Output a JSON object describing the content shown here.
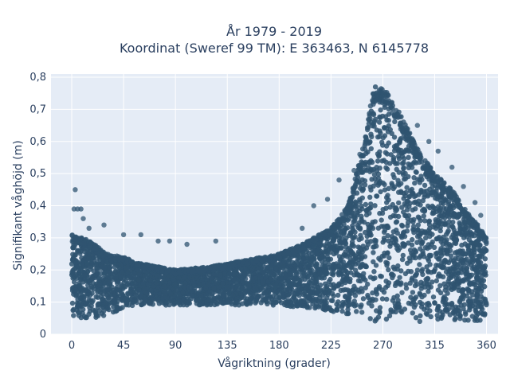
{
  "chart_data": {
    "type": "scatter",
    "title_line1": "År 1979 - 2019",
    "title_line2": "Koordinat (Sweref 99 TM): E 363463, N 6145778",
    "xlabel": "Vågriktning (grader)",
    "ylabel": "Signifikant våghöjd (m)",
    "xlim": [
      -18,
      370
    ],
    "ylim": [
      0,
      0.81
    ],
    "x_ticks": [
      0,
      45,
      90,
      135,
      180,
      225,
      270,
      315,
      360
    ],
    "x_tick_labels": [
      "0",
      "45",
      "90",
      "135",
      "180",
      "225",
      "270",
      "315",
      "360"
    ],
    "y_ticks": [
      0,
      0.1,
      0.2,
      0.3,
      0.4,
      0.5,
      0.6,
      0.7,
      0.8
    ],
    "y_tick_labels": [
      "0",
      "0,1",
      "0,2",
      "0,3",
      "0,4",
      "0,5",
      "0,6",
      "0,7",
      "0,8"
    ],
    "grid": true,
    "marker_color": "#2f5470",
    "plot_bg": "#e5ecf6",
    "density_envelope": {
      "direction": [
        0,
        10,
        20,
        30,
        45,
        60,
        90,
        120,
        135,
        150,
        180,
        200,
        215,
        225,
        240,
        255,
        262,
        270,
        280,
        290,
        300,
        315,
        330,
        345,
        355,
        360
      ],
      "min_height": [
        0.05,
        0.05,
        0.05,
        0.06,
        0.08,
        0.09,
        0.09,
        0.09,
        0.09,
        0.09,
        0.09,
        0.08,
        0.08,
        0.07,
        0.06,
        0.05,
        0.04,
        0.04,
        0.04,
        0.04,
        0.04,
        0.04,
        0.04,
        0.04,
        0.04,
        0.04
      ],
      "max_height": [
        0.31,
        0.3,
        0.28,
        0.25,
        0.24,
        0.22,
        0.2,
        0.21,
        0.22,
        0.23,
        0.25,
        0.28,
        0.31,
        0.33,
        0.4,
        0.62,
        0.77,
        0.77,
        0.72,
        0.65,
        0.58,
        0.5,
        0.45,
        0.37,
        0.33,
        0.3
      ]
    },
    "outliers": [
      [
        3,
        0.45
      ],
      [
        2,
        0.39
      ],
      [
        5,
        0.39
      ],
      [
        8,
        0.39
      ],
      [
        10,
        0.36
      ],
      [
        15,
        0.33
      ],
      [
        28,
        0.34
      ],
      [
        45,
        0.31
      ],
      [
        60,
        0.31
      ],
      [
        75,
        0.29
      ],
      [
        85,
        0.29
      ],
      [
        100,
        0.28
      ],
      [
        125,
        0.29
      ],
      [
        200,
        0.33
      ],
      [
        210,
        0.4
      ],
      [
        222,
        0.42
      ],
      [
        232,
        0.48
      ],
      [
        245,
        0.51
      ],
      [
        250,
        0.56
      ],
      [
        255,
        0.6
      ],
      [
        260,
        0.66
      ],
      [
        300,
        0.65
      ],
      [
        310,
        0.6
      ],
      [
        318,
        0.57
      ],
      [
        330,
        0.52
      ],
      [
        340,
        0.46
      ],
      [
        350,
        0.41
      ],
      [
        355,
        0.37
      ]
    ]
  }
}
